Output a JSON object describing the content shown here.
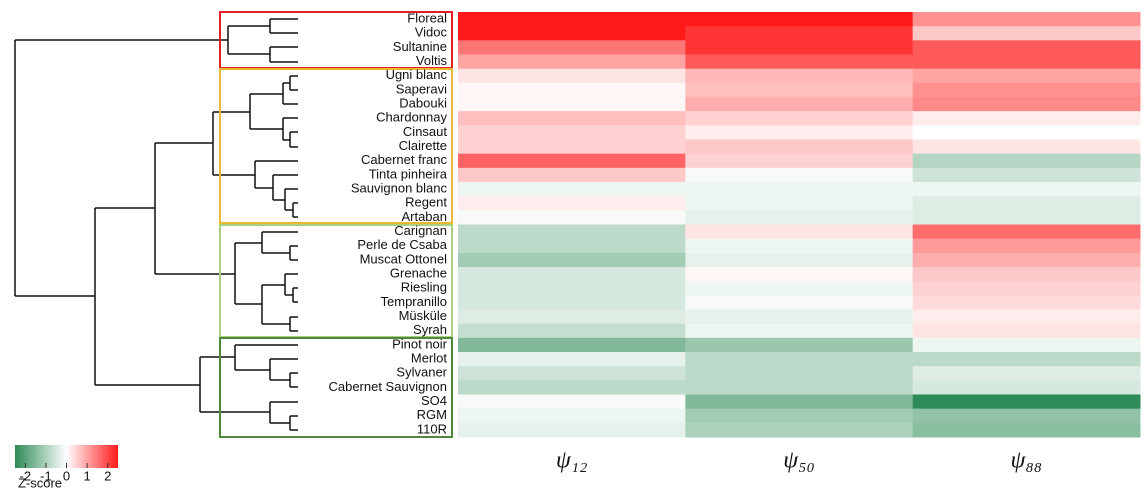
{
  "chart_data": {
    "type": "heatmap",
    "rows": [
      "Floreal",
      "Vidoc",
      "Sultanine",
      "Voltis",
      "Ugni blanc",
      "Saperavi",
      "Dabouki",
      "Chardonnay",
      "Cinsaut",
      "Clairette",
      "Cabernet franc",
      "Tinta pinheira",
      "Sauvignon blanc",
      "Regent",
      "Artaban",
      "Carignan",
      "Perle de Csaba",
      "Muscat Ottonel",
      "Grenache",
      "Riesling",
      "Tempranillo",
      "Müsküle",
      "Syrah",
      "Pinot noir",
      "Merlot",
      "Sylvaner",
      "Cabernet Sauvignon",
      "SO4",
      "RGM",
      "110R"
    ],
    "columns": [
      "ψ₁₂",
      "ψ₅₀",
      "ψ₈₈"
    ],
    "values": [
      [
        2.5,
        2.5,
        1.2
      ],
      [
        2.5,
        2.2,
        0.6
      ],
      [
        1.5,
        2.2,
        1.8
      ],
      [
        1.0,
        1.8,
        1.8
      ],
      [
        0.3,
        0.8,
        1.0
      ],
      [
        0.1,
        0.7,
        1.2
      ],
      [
        0.1,
        0.9,
        1.3
      ],
      [
        0.7,
        0.5,
        0.2
      ],
      [
        0.5,
        0.2,
        0.0
      ],
      [
        0.5,
        0.6,
        0.3
      ],
      [
        1.7,
        0.5,
        -0.9
      ],
      [
        0.6,
        -0.1,
        -0.6
      ],
      [
        -0.2,
        -0.2,
        -0.2
      ],
      [
        0.2,
        -0.2,
        -0.4
      ],
      [
        -0.1,
        -0.3,
        -0.4
      ],
      [
        -0.8,
        0.3,
        1.6
      ],
      [
        -0.8,
        -0.2,
        1.1
      ],
      [
        -1.1,
        -0.3,
        0.9
      ],
      [
        -0.5,
        0.1,
        0.6
      ],
      [
        -0.5,
        -0.2,
        0.5
      ],
      [
        -0.5,
        -0.1,
        0.4
      ],
      [
        -0.4,
        -0.3,
        0.2
      ],
      [
        -0.7,
        -0.2,
        0.3
      ],
      [
        -1.5,
        -1.2,
        -0.2
      ],
      [
        -0.3,
        -0.8,
        -0.8
      ],
      [
        -0.6,
        -0.8,
        -0.4
      ],
      [
        -0.8,
        -0.8,
        -0.5
      ],
      [
        -0.1,
        -1.5,
        -2.5
      ],
      [
        -0.2,
        -1.1,
        -1.3
      ],
      [
        -0.3,
        -1.0,
        -1.4
      ]
    ],
    "clim": [
      -2.5,
      2.5
    ],
    "colorbar_ticks": [
      -2,
      -1,
      0,
      1,
      2
    ],
    "colorbar_label": "Z-score",
    "low_color": "#2e8b57",
    "mid_color": "#ffffff",
    "high_color": "#ff1a1a"
  }
}
